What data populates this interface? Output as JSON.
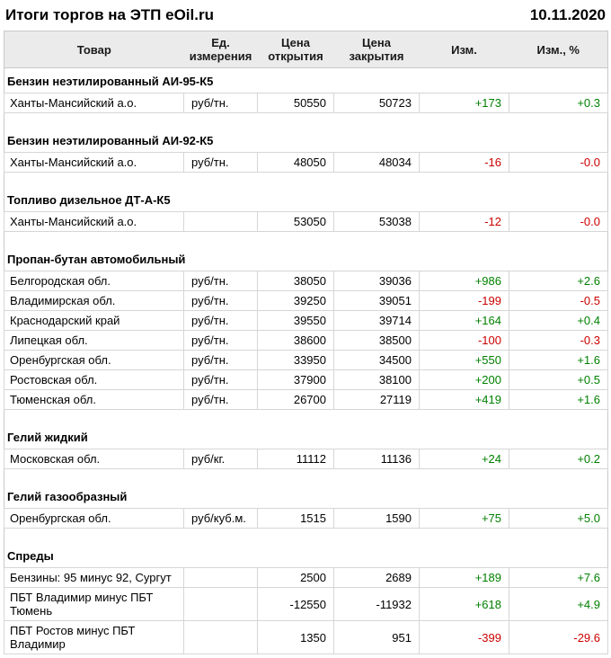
{
  "header": {
    "title": "Итоги торгов на ЭТП eOil.ru",
    "date": "10.11.2020"
  },
  "colors": {
    "up": "#008000",
    "down": "#cc0000"
  },
  "table": {
    "columns": [
      "Товар",
      "Ед.\nизмерения",
      "Цена\nоткрытия",
      "Цена\nзакрытия",
      "Изм.",
      "Изм., %"
    ],
    "groups": [
      {
        "name": "Бензин неэтилированный АИ-95-К5",
        "rows": [
          {
            "product": "Ханты-Мансийский а.о.",
            "unit": "руб/тн.",
            "open": "50550",
            "close": "50723",
            "change": "+173",
            "change_pct": "+0.3"
          }
        ]
      },
      {
        "name": "Бензин неэтилированный АИ-92-К5",
        "rows": [
          {
            "product": "Ханты-Мансийский а.о.",
            "unit": "руб/тн.",
            "open": "48050",
            "close": "48034",
            "change": "-16",
            "change_pct": "-0.0"
          }
        ]
      },
      {
        "name": "Топливо дизельное ДТ-А-К5",
        "rows": [
          {
            "product": "Ханты-Мансийский а.о.",
            "unit": "",
            "open": "53050",
            "close": "53038",
            "change": "-12",
            "change_pct": "-0.0"
          }
        ]
      },
      {
        "name": "Пропан-бутан автомобильный",
        "rows": [
          {
            "product": "Белгородская обл.",
            "unit": "руб/тн.",
            "open": "38050",
            "close": "39036",
            "change": "+986",
            "change_pct": "+2.6"
          },
          {
            "product": "Владимирская обл.",
            "unit": "руб/тн.",
            "open": "39250",
            "close": "39051",
            "change": "-199",
            "change_pct": "-0.5"
          },
          {
            "product": "Краснодарский край",
            "unit": "руб/тн.",
            "open": "39550",
            "close": "39714",
            "change": "+164",
            "change_pct": "+0.4"
          },
          {
            "product": "Липецкая обл.",
            "unit": "руб/тн.",
            "open": "38600",
            "close": "38500",
            "change": "-100",
            "change_pct": "-0.3"
          },
          {
            "product": "Оренбургская обл.",
            "unit": "руб/тн.",
            "open": "33950",
            "close": "34500",
            "change": "+550",
            "change_pct": "+1.6"
          },
          {
            "product": "Ростовская обл.",
            "unit": "руб/тн.",
            "open": "37900",
            "close": "38100",
            "change": "+200",
            "change_pct": "+0.5"
          },
          {
            "product": "Тюменская обл.",
            "unit": "руб/тн.",
            "open": "26700",
            "close": "27119",
            "change": "+419",
            "change_pct": "+1.6"
          }
        ]
      },
      {
        "name": "Гелий жидкий",
        "rows": [
          {
            "product": "Московская обл.",
            "unit": "руб/кг.",
            "open": "11112",
            "close": "11136",
            "change": "+24",
            "change_pct": "+0.2"
          }
        ]
      },
      {
        "name": "Гелий газообразный",
        "rows": [
          {
            "product": "Оренбургская обл.",
            "unit": "руб/куб.м.",
            "open": "1515",
            "close": "1590",
            "change": "+75",
            "change_pct": "+5.0"
          }
        ]
      },
      {
        "name": "Спреды",
        "rows": [
          {
            "product": "Бензины: 95 минус 92, Сургут",
            "unit": "",
            "open": "2500",
            "close": "2689",
            "change": "+189",
            "change_pct": "+7.6"
          },
          {
            "product": "ПБТ Владимир минус ПБТ Тюмень",
            "unit": "",
            "open": "-12550",
            "close": "-11932",
            "change": "+618",
            "change_pct": "+4.9"
          },
          {
            "product": "ПБТ Ростов минус ПБТ Владимир",
            "unit": "",
            "open": "1350",
            "close": "951",
            "change": "-399",
            "change_pct": "-29.6"
          }
        ]
      }
    ]
  }
}
